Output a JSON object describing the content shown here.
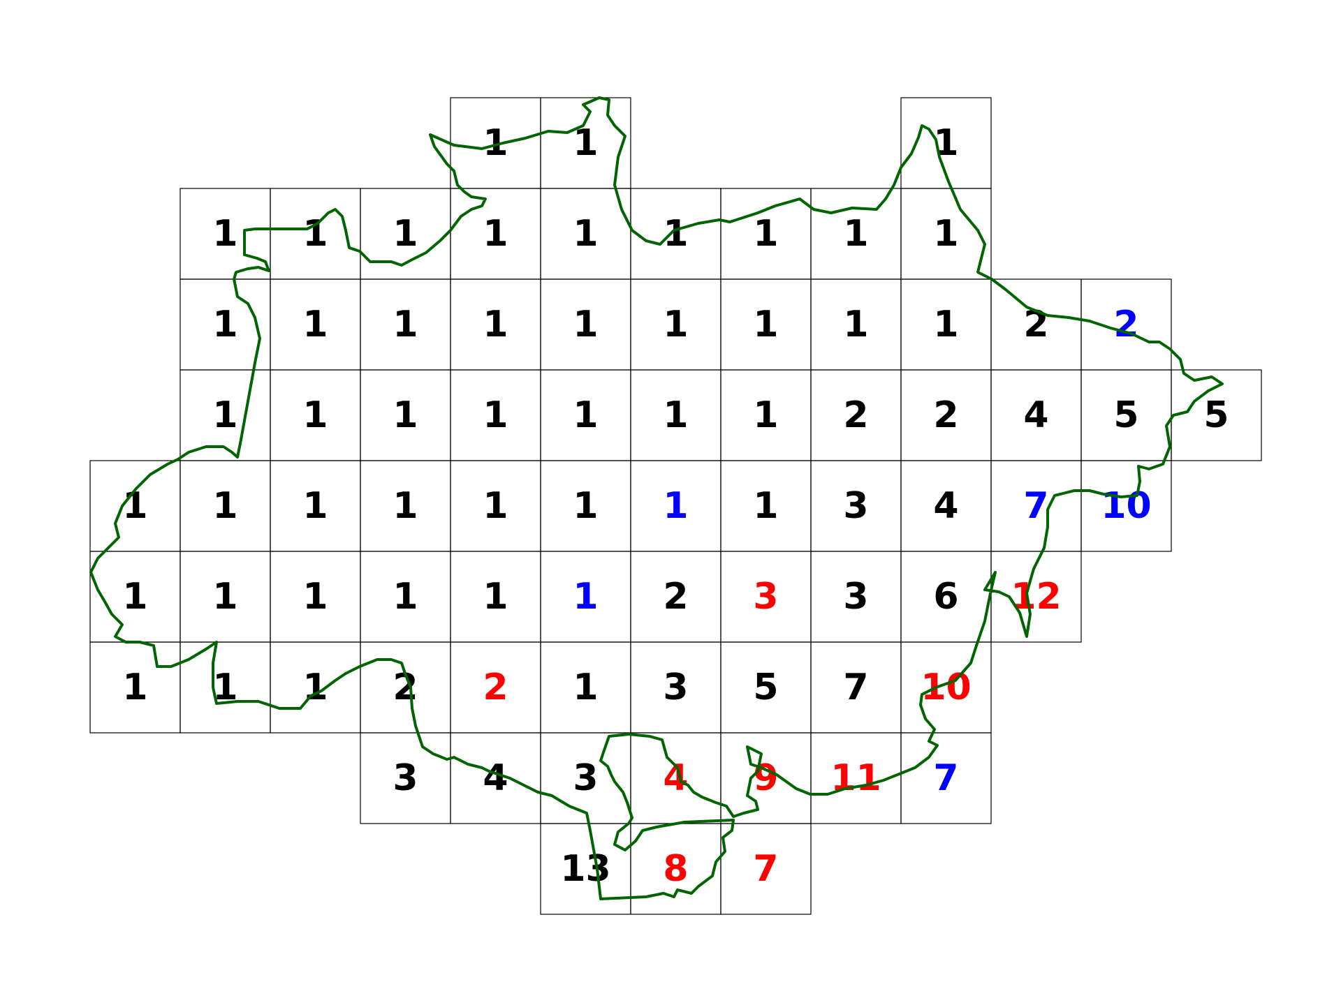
{
  "colors": {
    "black": "#000000",
    "red": "#ff0000",
    "blue": "#0000ff",
    "boundary": "#006400"
  },
  "grid": [
    {
      "row": 0,
      "cells": [
        {
          "col": 4,
          "value": "1",
          "color": "black"
        },
        {
          "col": 5,
          "value": "1",
          "color": "black"
        },
        {
          "col": 9,
          "value": "1",
          "color": "black"
        }
      ]
    },
    {
      "row": 1,
      "cells": [
        {
          "col": 1,
          "value": "1",
          "color": "black"
        },
        {
          "col": 2,
          "value": "1",
          "color": "black"
        },
        {
          "col": 3,
          "value": "1",
          "color": "black"
        },
        {
          "col": 4,
          "value": "1",
          "color": "black"
        },
        {
          "col": 5,
          "value": "1",
          "color": "black"
        },
        {
          "col": 6,
          "value": "1",
          "color": "black"
        },
        {
          "col": 7,
          "value": "1",
          "color": "black"
        },
        {
          "col": 8,
          "value": "1",
          "color": "black"
        },
        {
          "col": 9,
          "value": "1",
          "color": "black"
        }
      ]
    },
    {
      "row": 2,
      "cells": [
        {
          "col": 1,
          "value": "1",
          "color": "black"
        },
        {
          "col": 2,
          "value": "1",
          "color": "black"
        },
        {
          "col": 3,
          "value": "1",
          "color": "black"
        },
        {
          "col": 4,
          "value": "1",
          "color": "black"
        },
        {
          "col": 5,
          "value": "1",
          "color": "black"
        },
        {
          "col": 6,
          "value": "1",
          "color": "black"
        },
        {
          "col": 7,
          "value": "1",
          "color": "black"
        },
        {
          "col": 8,
          "value": "1",
          "color": "black"
        },
        {
          "col": 9,
          "value": "1",
          "color": "black"
        },
        {
          "col": 10,
          "value": "2",
          "color": "black"
        },
        {
          "col": 11,
          "value": "2",
          "color": "blue"
        }
      ]
    },
    {
      "row": 3,
      "cells": [
        {
          "col": 1,
          "value": "1",
          "color": "black"
        },
        {
          "col": 2,
          "value": "1",
          "color": "black"
        },
        {
          "col": 3,
          "value": "1",
          "color": "black"
        },
        {
          "col": 4,
          "value": "1",
          "color": "black"
        },
        {
          "col": 5,
          "value": "1",
          "color": "black"
        },
        {
          "col": 6,
          "value": "1",
          "color": "black"
        },
        {
          "col": 7,
          "value": "1",
          "color": "black"
        },
        {
          "col": 8,
          "value": "2",
          "color": "black"
        },
        {
          "col": 9,
          "value": "2",
          "color": "black"
        },
        {
          "col": 10,
          "value": "4",
          "color": "black"
        },
        {
          "col": 11,
          "value": "5",
          "color": "black"
        },
        {
          "col": 12,
          "value": "5",
          "color": "black"
        }
      ]
    },
    {
      "row": 4,
      "cells": [
        {
          "col": 0,
          "value": "1",
          "color": "black"
        },
        {
          "col": 1,
          "value": "1",
          "color": "black"
        },
        {
          "col": 2,
          "value": "1",
          "color": "black"
        },
        {
          "col": 3,
          "value": "1",
          "color": "black"
        },
        {
          "col": 4,
          "value": "1",
          "color": "black"
        },
        {
          "col": 5,
          "value": "1",
          "color": "black"
        },
        {
          "col": 6,
          "value": "1",
          "color": "blue"
        },
        {
          "col": 7,
          "value": "1",
          "color": "black"
        },
        {
          "col": 8,
          "value": "3",
          "color": "black"
        },
        {
          "col": 9,
          "value": "4",
          "color": "black"
        },
        {
          "col": 10,
          "value": "7",
          "color": "blue"
        },
        {
          "col": 11,
          "value": "10",
          "color": "blue"
        }
      ]
    },
    {
      "row": 5,
      "cells": [
        {
          "col": 0,
          "value": "1",
          "color": "black"
        },
        {
          "col": 1,
          "value": "1",
          "color": "black"
        },
        {
          "col": 2,
          "value": "1",
          "color": "black"
        },
        {
          "col": 3,
          "value": "1",
          "color": "black"
        },
        {
          "col": 4,
          "value": "1",
          "color": "black"
        },
        {
          "col": 5,
          "value": "1",
          "color": "blue"
        },
        {
          "col": 6,
          "value": "2",
          "color": "black"
        },
        {
          "col": 7,
          "value": "3",
          "color": "red"
        },
        {
          "col": 8,
          "value": "3",
          "color": "black"
        },
        {
          "col": 9,
          "value": "6",
          "color": "black"
        },
        {
          "col": 10,
          "value": "12",
          "color": "red"
        }
      ]
    },
    {
      "row": 6,
      "cells": [
        {
          "col": 0,
          "value": "1",
          "color": "black"
        },
        {
          "col": 1,
          "value": "1",
          "color": "black"
        },
        {
          "col": 2,
          "value": "1",
          "color": "black"
        },
        {
          "col": 3,
          "value": "2",
          "color": "black"
        },
        {
          "col": 4,
          "value": "2",
          "color": "red"
        },
        {
          "col": 5,
          "value": "1",
          "color": "black"
        },
        {
          "col": 6,
          "value": "3",
          "color": "black"
        },
        {
          "col": 7,
          "value": "5",
          "color": "black"
        },
        {
          "col": 8,
          "value": "7",
          "color": "black"
        },
        {
          "col": 9,
          "value": "10",
          "color": "red"
        }
      ]
    },
    {
      "row": 7,
      "cells": [
        {
          "col": 3,
          "value": "3",
          "color": "black"
        },
        {
          "col": 4,
          "value": "4",
          "color": "black"
        },
        {
          "col": 5,
          "value": "3",
          "color": "black"
        },
        {
          "col": 6,
          "value": "4",
          "color": "red"
        },
        {
          "col": 7,
          "value": "9",
          "color": "red"
        },
        {
          "col": 8,
          "value": "11",
          "color": "red"
        },
        {
          "col": 9,
          "value": "7",
          "color": "blue"
        }
      ]
    },
    {
      "row": 8,
      "cells": [
        {
          "col": 5,
          "value": "13",
          "color": "black"
        },
        {
          "col": 6,
          "value": "8",
          "color": "red"
        },
        {
          "col": 7,
          "value": "7",
          "color": "red"
        }
      ]
    }
  ]
}
